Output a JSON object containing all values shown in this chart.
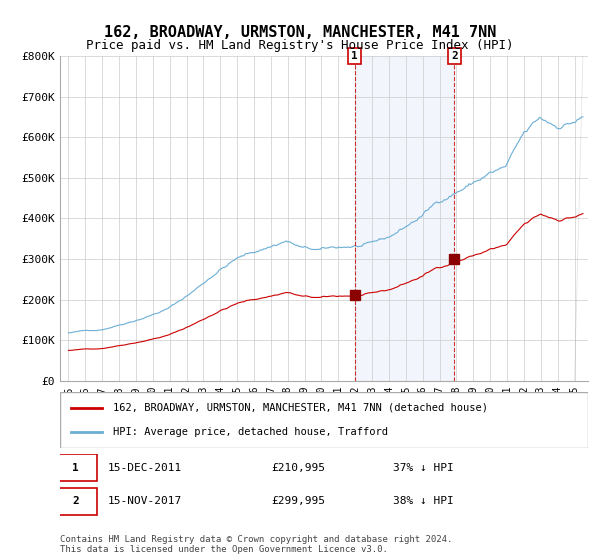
{
  "title": "162, BROADWAY, URMSTON, MANCHESTER, M41 7NN",
  "subtitle": "Price paid vs. HM Land Registry's House Price Index (HPI)",
  "hpi_label": "HPI: Average price, detached house, Trafford",
  "price_label": "162, BROADWAY, URMSTON, MANCHESTER, M41 7NN (detached house)",
  "hpi_color": "#6baed6",
  "price_color": "#cc0000",
  "marker_color": "#8b0000",
  "vline_color": "#cc0000",
  "shading_color": "#ddeeff",
  "event1_date_num": 2011.96,
  "event2_date_num": 2017.88,
  "event1_label": "1",
  "event2_label": "2",
  "event1_price": 210995,
  "event2_price": 299995,
  "annotation1": "1    15-DEC-2011    £210,995    37% ↓ HPI",
  "annotation2": "2    15-NOV-2017    £299,995    38% ↓ HPI",
  "footer": "Contains HM Land Registry data © Crown copyright and database right 2024.\nThis data is licensed under the Open Government Licence v3.0.",
  "ylim": [
    0,
    800000
  ],
  "yticks": [
    0,
    100000,
    200000,
    300000,
    400000,
    500000,
    600000,
    700000,
    800000
  ],
  "ytick_labels": [
    "£0",
    "£100K",
    "£200K",
    "£300K",
    "£400K",
    "£500K",
    "£600K",
    "£700K",
    "£800K"
  ],
  "x_start_year": 1995,
  "x_end_year": 2025
}
